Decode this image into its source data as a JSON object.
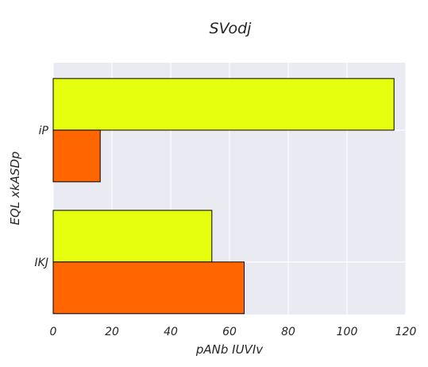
{
  "chart_data": {
    "type": "bar",
    "orientation": "horizontal",
    "title": "SVodj",
    "xlabel": "pANb IUVIv",
    "ylabel": "EQL xkASDp",
    "categories": [
      "iP",
      "IKJ"
    ],
    "series": [
      {
        "values": [
          116,
          54
        ],
        "color": "#e6ff0f"
      },
      {
        "values": [
          16,
          65
        ],
        "color": "#ff6600"
      }
    ],
    "xlim": [
      0,
      120
    ],
    "xticks": [
      0,
      20,
      40,
      60,
      80,
      100,
      120
    ],
    "grid": true,
    "background": "#eaeaf2"
  }
}
